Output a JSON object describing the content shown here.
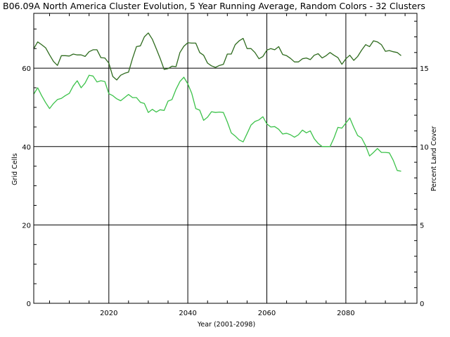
{
  "chart_data": {
    "type": "line",
    "title": "B06.09A North America Cluster Evolution, 5 Year Running Average, Random Colors - 32 Clusters",
    "xlabel": "Year (2001-2098)",
    "ylabel": "Grid Cells",
    "y2label": "Percent Land Cover",
    "xlim": [
      2001,
      2098
    ],
    "ylim": [
      0,
      74
    ],
    "y2lim": [
      0,
      18.5
    ],
    "xticks": [
      2020,
      2040,
      2060,
      2080
    ],
    "yticks": [
      0,
      20,
      40,
      60
    ],
    "y2ticks": [
      0,
      5,
      10,
      15
    ],
    "grid": true,
    "series": [
      {
        "color": "#2e6b1e",
        "x": [
          2001,
          2002,
          2003,
          2004,
          2005,
          2006,
          2007,
          2008,
          2009,
          2010,
          2011,
          2012,
          2013,
          2014,
          2015,
          2016,
          2017,
          2018,
          2019,
          2020,
          2021,
          2022,
          2023,
          2024,
          2025,
          2026,
          2027,
          2028,
          2029,
          2030,
          2031,
          2032,
          2033,
          2034,
          2035,
          2036,
          2037,
          2038,
          2039,
          2040,
          2041,
          2042,
          2043,
          2044,
          2045,
          2046,
          2047,
          2048,
          2049,
          2050,
          2051,
          2052,
          2053,
          2054,
          2055,
          2056,
          2057,
          2058,
          2059,
          2060,
          2061,
          2062,
          2063,
          2064,
          2065,
          2066,
          2067,
          2068,
          2069,
          2070,
          2071,
          2072,
          2073,
          2074,
          2075,
          2076,
          2077,
          2078,
          2079,
          2080,
          2081,
          2082,
          2083,
          2084,
          2085,
          2086,
          2087,
          2088,
          2089,
          2090,
          2091,
          2092,
          2093,
          2094
        ],
        "values": [
          65.0,
          66.7,
          66.0,
          65.2,
          63.4,
          61.7,
          60.7,
          63.2,
          63.2,
          63.1,
          63.6,
          63.4,
          63.4,
          63.0,
          64.2,
          64.7,
          64.7,
          62.7,
          62.6,
          61.3,
          57.9,
          57.0,
          58.2,
          58.7,
          59.0,
          62.5,
          65.5,
          65.7,
          68.0,
          69.0,
          67.4,
          65.0,
          62.5,
          59.7,
          59.9,
          60.5,
          60.4,
          64.0,
          65.6,
          66.5,
          66.4,
          66.4,
          64.0,
          63.3,
          61.3,
          60.6,
          60.2,
          60.7,
          61.0,
          63.6,
          63.6,
          66.0,
          67.0,
          67.6,
          65.0,
          65.0,
          64.0,
          62.4,
          63.0,
          64.6,
          65.0,
          64.7,
          65.5,
          63.5,
          63.2,
          62.5,
          61.6,
          61.6,
          62.4,
          62.6,
          62.2,
          63.3,
          63.7,
          62.6,
          63.2,
          64.0,
          63.3,
          62.7,
          61.0,
          62.4,
          63.3,
          62.0,
          63.0,
          64.6,
          66.0,
          65.5,
          67.0,
          66.7,
          66.0,
          64.3,
          64.5,
          64.2,
          64.0,
          63.2
        ]
      },
      {
        "color": "#3cc24a",
        "x": [
          2001,
          2002,
          2003,
          2004,
          2005,
          2006,
          2007,
          2008,
          2009,
          2010,
          2011,
          2012,
          2013,
          2014,
          2015,
          2016,
          2017,
          2018,
          2019,
          2020,
          2021,
          2022,
          2023,
          2024,
          2025,
          2026,
          2027,
          2028,
          2029,
          2030,
          2031,
          2032,
          2033,
          2034,
          2035,
          2036,
          2037,
          2038,
          2039,
          2040,
          2041,
          2042,
          2043,
          2044,
          2045,
          2046,
          2047,
          2048,
          2049,
          2050,
          2051,
          2052,
          2053,
          2054,
          2055,
          2056,
          2057,
          2058,
          2059,
          2060,
          2061,
          2062,
          2063,
          2064,
          2065,
          2066,
          2067,
          2068,
          2069,
          2070,
          2071,
          2072,
          2073,
          2074,
          2075,
          2076,
          2077,
          2078,
          2079,
          2080,
          2081,
          2082,
          2083,
          2084,
          2085,
          2086,
          2087,
          2088,
          2089,
          2090,
          2091,
          2092,
          2093,
          2094
        ],
        "values": [
          53.4,
          55.0,
          53.0,
          51.2,
          49.7,
          51.0,
          52.0,
          52.3,
          53.0,
          53.6,
          55.5,
          56.8,
          55.0,
          56.2,
          58.2,
          58.0,
          56.5,
          56.8,
          56.6,
          53.5,
          53.0,
          52.2,
          51.7,
          52.5,
          53.3,
          52.5,
          52.5,
          51.3,
          51.0,
          48.7,
          49.5,
          48.8,
          49.4,
          49.2,
          51.6,
          52.0,
          54.6,
          56.6,
          57.7,
          56.0,
          53.6,
          49.7,
          49.3,
          46.7,
          47.5,
          48.9,
          48.7,
          48.8,
          48.7,
          46.3,
          43.5,
          42.7,
          41.7,
          41.2,
          43.3,
          45.5,
          46.4,
          46.8,
          47.6,
          45.8,
          45.0,
          45.1,
          44.4,
          43.2,
          43.4,
          43.0,
          42.4,
          43.0,
          44.2,
          43.5,
          44.0,
          42.0,
          40.8,
          40.0,
          40.0,
          40.0,
          42.2,
          44.9,
          44.7,
          46.0,
          47.3,
          44.9,
          42.8,
          42.2,
          40.2,
          37.6,
          38.5,
          39.5,
          38.5,
          38.5,
          38.4,
          36.5,
          33.9,
          33.7
        ]
      }
    ]
  }
}
